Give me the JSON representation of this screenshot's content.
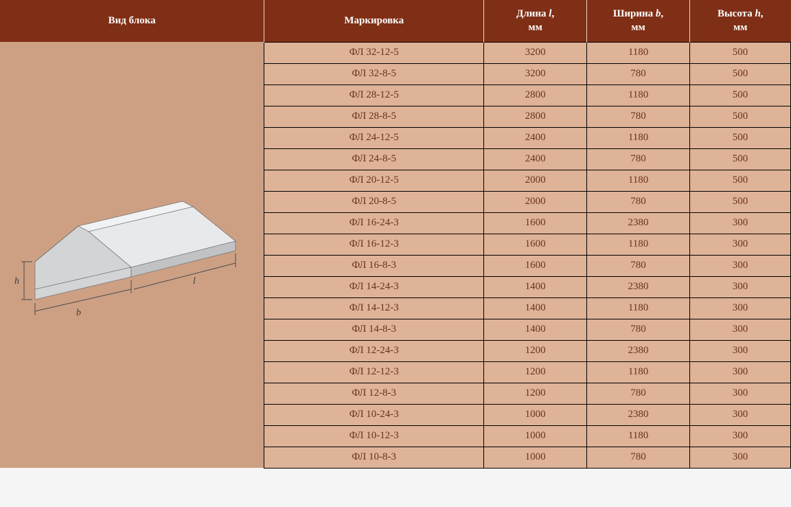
{
  "header": {
    "col_image": "Вид блока",
    "col_mark": "Маркировка",
    "col_length_html": "Длина <em>l</em>,<br><span class='unit'>мм</span>",
    "col_width_html": "Ширина <em>b</em>,<br><span class='unit'>мм</span>",
    "col_height_html": "Высота <em>h</em>,<br><span class='unit'>мм</span>"
  },
  "diagram": {
    "label_h": "h",
    "label_b": "b",
    "label_l": "l",
    "block_top_fill": "#e8e9ea",
    "block_front_fill": "#d2d4d5",
    "block_side_fill": "#c0c2c3",
    "block_top_light": "#f1f2f3",
    "stroke": "#5d5d5d",
    "dim_stroke": "#4a4a4a"
  },
  "colors": {
    "header_bg": "#7f2f16",
    "header_text": "#ffffff",
    "cell_bg": "#deb397",
    "cell_text": "#6a321c",
    "image_cell_bg": "#cda084",
    "cell_border": "#000000"
  },
  "rows": [
    {
      "mark": "ФЛ 32-12-5",
      "l": "3200",
      "b": "1180",
      "h": "500"
    },
    {
      "mark": "ФЛ 32-8-5",
      "l": "3200",
      "b": "780",
      "h": "500"
    },
    {
      "mark": "ФЛ 28-12-5",
      "l": "2800",
      "b": "1180",
      "h": "500"
    },
    {
      "mark": "ФЛ 28-8-5",
      "l": "2800",
      "b": "780",
      "h": "500"
    },
    {
      "mark": "ФЛ 24-12-5",
      "l": "2400",
      "b": "1180",
      "h": "500"
    },
    {
      "mark": "ФЛ 24-8-5",
      "l": "2400",
      "b": "780",
      "h": "500"
    },
    {
      "mark": "ФЛ 20-12-5",
      "l": "2000",
      "b": "1180",
      "h": "500"
    },
    {
      "mark": "ФЛ 20-8-5",
      "l": "2000",
      "b": "780",
      "h": "500"
    },
    {
      "mark": "ФЛ 16-24-3",
      "l": "1600",
      "b": "2380",
      "h": "300"
    },
    {
      "mark": "ФЛ 16-12-3",
      "l": "1600",
      "b": "1180",
      "h": "300"
    },
    {
      "mark": "ФЛ 16-8-3",
      "l": "1600",
      "b": "780",
      "h": "300"
    },
    {
      "mark": "ФЛ 14-24-3",
      "l": "1400",
      "b": "2380",
      "h": "300"
    },
    {
      "mark": "ФЛ 14-12-3",
      "l": "1400",
      "b": "1180",
      "h": "300"
    },
    {
      "mark": "ФЛ 14-8-3",
      "l": "1400",
      "b": "780",
      "h": "300"
    },
    {
      "mark": "ФЛ 12-24-3",
      "l": "1200",
      "b": "2380",
      "h": "300"
    },
    {
      "mark": "ФЛ 12-12-3",
      "l": "1200",
      "b": "1180",
      "h": "300"
    },
    {
      "mark": "ФЛ 12-8-3",
      "l": "1200",
      "b": "780",
      "h": "300"
    },
    {
      "mark": "ФЛ 10-24-3",
      "l": "1000",
      "b": "2380",
      "h": "300"
    },
    {
      "mark": "ФЛ 10-12-3",
      "l": "1000",
      "b": "1180",
      "h": "300"
    },
    {
      "mark": "ФЛ 10-8-3",
      "l": "1000",
      "b": "780",
      "h": "300"
    }
  ]
}
